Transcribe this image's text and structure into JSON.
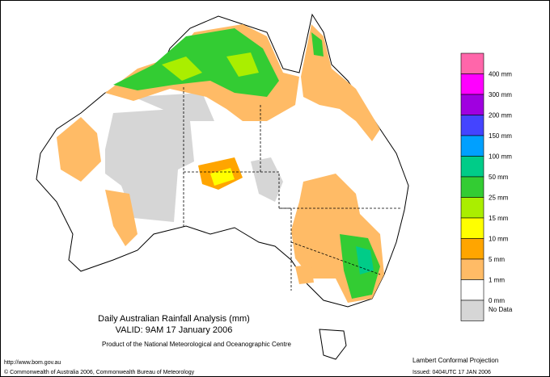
{
  "title": "Daily Australian Rainfall Analysis (mm)",
  "valid": "VALID: 9AM 17 January 2006",
  "producer": "Product of the National Meteorological and Oceanographic Centre",
  "url": "http://www.bom.gov.au",
  "copyright": "© Commonwealth of Australia 2006, Commonwealth Bureau of Meteorology",
  "projection": "Lambert Conformal Projection",
  "issued": "Issued: 0404UTC 17 JAN 2006",
  "legend": {
    "colors": [
      "#ff66aa",
      "#ff00ff",
      "#a000e0",
      "#4444ff",
      "#00a0ff",
      "#00cc88",
      "#33cc33",
      "#aaee00",
      "#ffff00",
      "#ffa500",
      "#ffbb66",
      "#ffffff",
      "#d6d6d6"
    ],
    "labels": [
      "400 mm",
      "300 mm",
      "200 mm",
      "150 mm",
      "100 mm",
      "50 mm",
      "25 mm",
      "15 mm",
      "10 mm",
      "5 mm",
      "1 mm",
      "0 mm",
      "No Data"
    ]
  }
}
